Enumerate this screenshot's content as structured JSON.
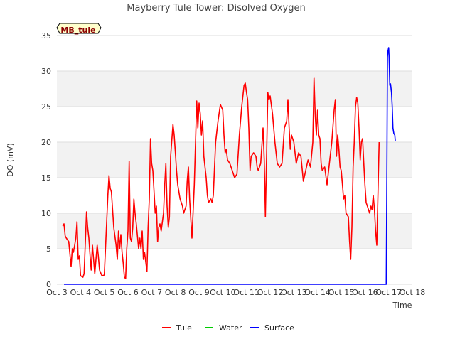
{
  "chart_data": {
    "type": "line",
    "title": "Mayberry Tule Tower: Disolved Oxygen",
    "xlabel": "Time",
    "ylabel": "DO (mV)",
    "station_badge": "MB_tule",
    "xlim": [
      3,
      18
    ],
    "ylim": [
      0,
      35
    ],
    "x_ticks": [
      {
        "value": 3,
        "label": "Oct 3"
      },
      {
        "value": 4,
        "label": "Oct 4"
      },
      {
        "value": 5,
        "label": "Oct 5"
      },
      {
        "value": 6,
        "label": "Oct 6"
      },
      {
        "value": 7,
        "label": "Oct 7"
      },
      {
        "value": 8,
        "label": "Oct 8"
      },
      {
        "value": 9,
        "label": "Oct 9"
      },
      {
        "value": 10,
        "label": "Oct 10"
      },
      {
        "value": 11,
        "label": "Oct 11"
      },
      {
        "value": 12,
        "label": "Oct 12"
      },
      {
        "value": 13,
        "label": "Oct 13"
      },
      {
        "value": 14,
        "label": "Oct 14"
      },
      {
        "value": 15,
        "label": "Oct 15"
      },
      {
        "value": 16,
        "label": "Oct 16"
      },
      {
        "value": 17,
        "label": "Oct 17"
      },
      {
        "value": 18,
        "label": "Oct 18"
      }
    ],
    "y_ticks": [
      0,
      5,
      10,
      15,
      20,
      25,
      30,
      35
    ],
    "grid": true,
    "legend_position": "bottom",
    "series": [
      {
        "name": "Tule",
        "color": "#ff0000",
        "points": [
          [
            3.25,
            8.2
          ],
          [
            3.3,
            8.5
          ],
          [
            3.35,
            6.8
          ],
          [
            3.4,
            6.5
          ],
          [
            3.5,
            6.0
          ],
          [
            3.6,
            2.5
          ],
          [
            3.65,
            5.0
          ],
          [
            3.7,
            4.5
          ],
          [
            3.75,
            5.5
          ],
          [
            3.8,
            6.5
          ],
          [
            3.85,
            8.8
          ],
          [
            3.9,
            3.5
          ],
          [
            3.95,
            4.0
          ],
          [
            4.0,
            1.2
          ],
          [
            4.1,
            1.0
          ],
          [
            4.15,
            1.5
          ],
          [
            4.25,
            10.2
          ],
          [
            4.3,
            8.0
          ],
          [
            4.35,
            6.5
          ],
          [
            4.4,
            4.0
          ],
          [
            4.45,
            2.0
          ],
          [
            4.5,
            5.5
          ],
          [
            4.6,
            1.5
          ],
          [
            4.7,
            5.5
          ],
          [
            4.75,
            4.0
          ],
          [
            4.8,
            2.0
          ],
          [
            4.9,
            1.2
          ],
          [
            5.0,
            1.3
          ],
          [
            5.15,
            12.5
          ],
          [
            5.2,
            15.3
          ],
          [
            5.25,
            13.5
          ],
          [
            5.3,
            13.0
          ],
          [
            5.4,
            8.0
          ],
          [
            5.5,
            5.5
          ],
          [
            5.55,
            3.5
          ],
          [
            5.6,
            7.5
          ],
          [
            5.65,
            5.0
          ],
          [
            5.7,
            7.0
          ],
          [
            5.75,
            4.5
          ],
          [
            5.8,
            3.0
          ],
          [
            5.85,
            1.0
          ],
          [
            5.9,
            0.8
          ],
          [
            5.95,
            5.0
          ],
          [
            6.0,
            7.5
          ],
          [
            6.05,
            17.3
          ],
          [
            6.1,
            6.5
          ],
          [
            6.15,
            6.0
          ],
          [
            6.2,
            8.0
          ],
          [
            6.25,
            12.0
          ],
          [
            6.3,
            10.0
          ],
          [
            6.35,
            8.5
          ],
          [
            6.45,
            5.0
          ],
          [
            6.5,
            6.5
          ],
          [
            6.55,
            5.0
          ],
          [
            6.6,
            7.5
          ],
          [
            6.65,
            3.5
          ],
          [
            6.7,
            4.5
          ],
          [
            6.8,
            1.8
          ],
          [
            6.85,
            8.0
          ],
          [
            6.9,
            12.0
          ],
          [
            6.95,
            20.5
          ],
          [
            7.0,
            17.0
          ],
          [
            7.05,
            16.0
          ],
          [
            7.1,
            13.0
          ],
          [
            7.15,
            10.0
          ],
          [
            7.2,
            11.0
          ],
          [
            7.25,
            6.0
          ],
          [
            7.3,
            8.0
          ],
          [
            7.35,
            8.5
          ],
          [
            7.4,
            7.5
          ],
          [
            7.5,
            10.0
          ],
          [
            7.55,
            14.0
          ],
          [
            7.6,
            17.0
          ],
          [
            7.65,
            11.0
          ],
          [
            7.7,
            8.0
          ],
          [
            7.75,
            9.5
          ],
          [
            7.8,
            18.0
          ],
          [
            7.9,
            22.5
          ],
          [
            7.95,
            21.0
          ],
          [
            8.0,
            18.5
          ],
          [
            8.05,
            16.0
          ],
          [
            8.1,
            14.0
          ],
          [
            8.2,
            12.0
          ],
          [
            8.3,
            11.0
          ],
          [
            8.35,
            10.0
          ],
          [
            8.4,
            10.5
          ],
          [
            8.45,
            11.0
          ],
          [
            8.5,
            14.5
          ],
          [
            8.55,
            16.5
          ],
          [
            8.6,
            12.0
          ],
          [
            8.7,
            6.5
          ],
          [
            8.8,
            14.0
          ],
          [
            8.9,
            25.8
          ],
          [
            8.95,
            22.0
          ],
          [
            9.0,
            25.5
          ],
          [
            9.05,
            24.0
          ],
          [
            9.1,
            21.0
          ],
          [
            9.15,
            23.0
          ],
          [
            9.2,
            18.0
          ],
          [
            9.3,
            15.0
          ],
          [
            9.35,
            12.5
          ],
          [
            9.4,
            11.5
          ],
          [
            9.5,
            12.0
          ],
          [
            9.55,
            11.5
          ],
          [
            9.6,
            12.5
          ],
          [
            9.7,
            20.0
          ],
          [
            9.8,
            23.0
          ],
          [
            9.9,
            25.3
          ],
          [
            10.0,
            24.5
          ],
          [
            10.05,
            21.0
          ],
          [
            10.1,
            18.5
          ],
          [
            10.15,
            19.0
          ],
          [
            10.2,
            17.5
          ],
          [
            10.3,
            17.0
          ],
          [
            10.4,
            16.0
          ],
          [
            10.5,
            15.0
          ],
          [
            10.6,
            15.5
          ],
          [
            10.7,
            21.0
          ],
          [
            10.8,
            25.0
          ],
          [
            10.9,
            28.0
          ],
          [
            10.95,
            28.3
          ],
          [
            11.0,
            27.0
          ],
          [
            11.05,
            26.0
          ],
          [
            11.1,
            22.0
          ],
          [
            11.15,
            16.0
          ],
          [
            11.2,
            18.0
          ],
          [
            11.3,
            18.5
          ],
          [
            11.4,
            18.0
          ],
          [
            11.45,
            16.5
          ],
          [
            11.5,
            16.0
          ],
          [
            11.6,
            17.0
          ],
          [
            11.7,
            22.0
          ],
          [
            11.75,
            17.5
          ],
          [
            11.8,
            9.5
          ],
          [
            11.85,
            18.0
          ],
          [
            11.9,
            27.0
          ],
          [
            11.95,
            26.0
          ],
          [
            12.0,
            26.5
          ],
          [
            12.1,
            24.0
          ],
          [
            12.2,
            20.0
          ],
          [
            12.3,
            17.0
          ],
          [
            12.4,
            16.5
          ],
          [
            12.5,
            17.0
          ],
          [
            12.6,
            22.0
          ],
          [
            12.7,
            23.0
          ],
          [
            12.75,
            26.0
          ],
          [
            12.8,
            22.0
          ],
          [
            12.85,
            19.0
          ],
          [
            12.9,
            21.0
          ],
          [
            13.0,
            20.0
          ],
          [
            13.1,
            17.0
          ],
          [
            13.2,
            18.5
          ],
          [
            13.3,
            18.0
          ],
          [
            13.4,
            14.5
          ],
          [
            13.5,
            16.0
          ],
          [
            13.6,
            17.5
          ],
          [
            13.7,
            16.5
          ],
          [
            13.8,
            20.0
          ],
          [
            13.85,
            29.0
          ],
          [
            13.9,
            24.0
          ],
          [
            13.95,
            21.0
          ],
          [
            14.0,
            24.5
          ],
          [
            14.05,
            21.0
          ],
          [
            14.1,
            20.5
          ],
          [
            14.15,
            17.0
          ],
          [
            14.2,
            16.0
          ],
          [
            14.3,
            16.5
          ],
          [
            14.4,
            14.0
          ],
          [
            14.5,
            17.0
          ],
          [
            14.6,
            20.0
          ],
          [
            14.7,
            24.5
          ],
          [
            14.75,
            26.0
          ],
          [
            14.8,
            18.0
          ],
          [
            14.85,
            21.0
          ],
          [
            14.9,
            19.0
          ],
          [
            14.95,
            16.5
          ],
          [
            15.0,
            16.0
          ],
          [
            15.05,
            14.0
          ],
          [
            15.1,
            12.0
          ],
          [
            15.15,
            12.5
          ],
          [
            15.2,
            10.0
          ],
          [
            15.3,
            9.5
          ],
          [
            15.35,
            6.0
          ],
          [
            15.4,
            3.5
          ],
          [
            15.45,
            8.0
          ],
          [
            15.5,
            16.5
          ],
          [
            15.55,
            20.0
          ],
          [
            15.6,
            25.0
          ],
          [
            15.65,
            26.3
          ],
          [
            15.7,
            25.5
          ],
          [
            15.75,
            22.0
          ],
          [
            15.8,
            17.5
          ],
          [
            15.85,
            20.0
          ],
          [
            15.9,
            20.5
          ],
          [
            15.95,
            17.0
          ],
          [
            16.0,
            14.0
          ],
          [
            16.05,
            11.5
          ],
          [
            16.1,
            11.0
          ],
          [
            16.15,
            10.5
          ],
          [
            16.2,
            10.0
          ],
          [
            16.25,
            11.0
          ],
          [
            16.3,
            10.5
          ],
          [
            16.35,
            12.5
          ],
          [
            16.4,
            10.5
          ],
          [
            16.45,
            7.5
          ],
          [
            16.5,
            5.5
          ],
          [
            16.55,
            13.0
          ],
          [
            16.6,
            20.0
          ]
        ]
      },
      {
        "name": "Water",
        "color": "#00cc00",
        "points": []
      },
      {
        "name": "Surface",
        "color": "#0000ff",
        "points": [
          [
            3.3,
            0.0
          ],
          [
            16.9,
            0.0
          ],
          [
            16.92,
            12.0
          ],
          [
            16.95,
            32.0
          ],
          [
            16.97,
            32.8
          ],
          [
            17.0,
            33.3
          ],
          [
            17.02,
            32.0
          ],
          [
            17.05,
            28.0
          ],
          [
            17.08,
            28.2
          ],
          [
            17.12,
            27.0
          ],
          [
            17.15,
            25.0
          ],
          [
            17.18,
            22.0
          ],
          [
            17.22,
            21.2
          ],
          [
            17.26,
            21.0
          ],
          [
            17.28,
            20.2
          ]
        ]
      }
    ]
  }
}
